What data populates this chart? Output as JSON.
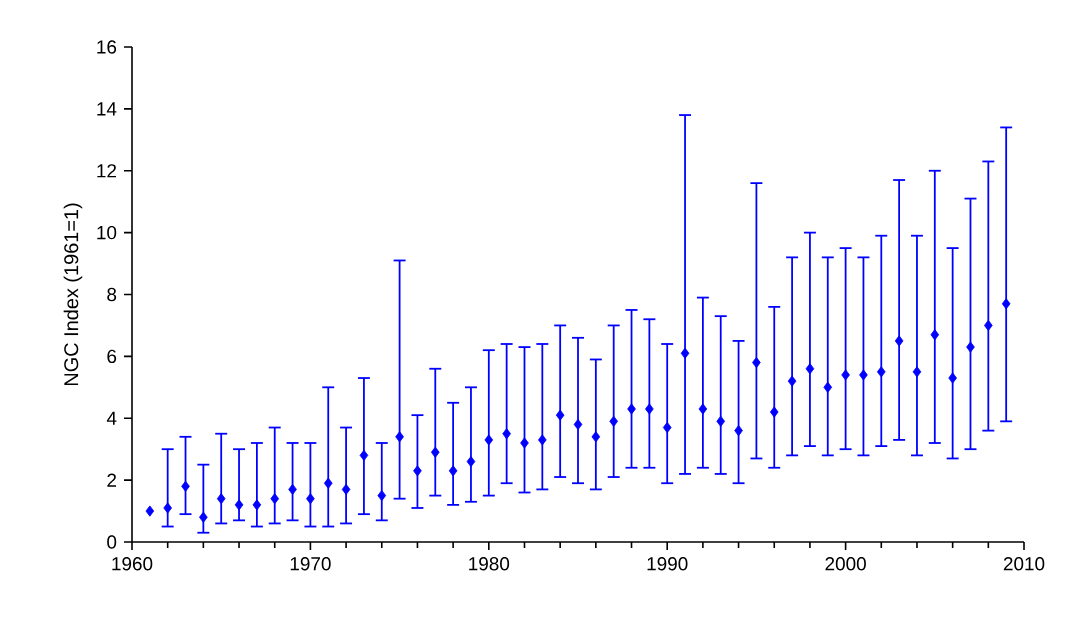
{
  "chart_data": {
    "type": "scatter",
    "ylabel": "NGC Index (1961=1)",
    "x": [
      1961,
      1962,
      1963,
      1964,
      1965,
      1966,
      1967,
      1968,
      1969,
      1970,
      1971,
      1972,
      1973,
      1974,
      1975,
      1976,
      1977,
      1978,
      1979,
      1980,
      1981,
      1982,
      1983,
      1984,
      1985,
      1986,
      1987,
      1988,
      1989,
      1990,
      1991,
      1992,
      1993,
      1994,
      1995,
      1996,
      1997,
      1998,
      1999,
      2000,
      2001,
      2002,
      2003,
      2004,
      2005,
      2006,
      2007,
      2008,
      2009
    ],
    "series": [
      {
        "color": "#0000ff",
        "values": [
          1.0,
          1.1,
          1.8,
          0.8,
          1.4,
          1.2,
          1.2,
          1.4,
          1.7,
          1.4,
          1.9,
          1.7,
          2.8,
          1.5,
          3.4,
          2.3,
          2.9,
          2.3,
          2.6,
          3.3,
          3.5,
          3.2,
          3.3,
          4.1,
          3.8,
          3.4,
          3.9,
          4.3,
          4.3,
          3.7,
          6.1,
          4.3,
          3.9,
          3.6,
          5.8,
          4.2,
          5.2,
          5.6,
          5.0,
          5.4,
          5.4,
          5.5,
          6.5,
          5.5,
          6.7,
          5.3,
          6.3,
          7.0,
          7.7
        ],
        "errors": [
          null,
          [
            0.5,
            3.0
          ],
          [
            0.9,
            3.4
          ],
          [
            0.3,
            2.5
          ],
          [
            0.6,
            3.5
          ],
          [
            0.7,
            3.0
          ],
          [
            0.5,
            3.2
          ],
          [
            0.6,
            3.7
          ],
          [
            0.7,
            3.2
          ],
          [
            0.5,
            3.2
          ],
          [
            0.5,
            5.0
          ],
          [
            0.6,
            3.7
          ],
          [
            0.9,
            5.3
          ],
          [
            0.7,
            3.2
          ],
          [
            1.4,
            9.1
          ],
          [
            1.1,
            4.1
          ],
          [
            1.5,
            5.6
          ],
          [
            1.2,
            4.5
          ],
          [
            1.3,
            5.0
          ],
          [
            1.5,
            6.2
          ],
          [
            1.9,
            6.4
          ],
          [
            1.6,
            6.3
          ],
          [
            1.7,
            6.4
          ],
          [
            2.1,
            7.0
          ],
          [
            1.9,
            6.6
          ],
          [
            1.7,
            5.9
          ],
          [
            2.1,
            7.0
          ],
          [
            2.4,
            7.5
          ],
          [
            2.4,
            7.2
          ],
          [
            1.9,
            6.4
          ],
          [
            2.2,
            13.8
          ],
          [
            2.4,
            7.9
          ],
          [
            2.2,
            7.3
          ],
          [
            1.9,
            6.5
          ],
          [
            2.7,
            11.6
          ],
          [
            2.4,
            7.6
          ],
          [
            2.8,
            9.2
          ],
          [
            3.1,
            10.0
          ],
          [
            2.8,
            9.2
          ],
          [
            3.0,
            9.5
          ],
          [
            2.8,
            9.2
          ],
          [
            3.1,
            9.9
          ],
          [
            3.3,
            11.7
          ],
          [
            2.8,
            9.9
          ],
          [
            3.2,
            12.0
          ],
          [
            2.7,
            9.5
          ],
          [
            3.0,
            11.1
          ],
          [
            3.6,
            12.3
          ],
          [
            3.9,
            13.4
          ]
        ]
      }
    ],
    "xlim": [
      1960,
      2010
    ],
    "xticks": [
      1960,
      1970,
      1980,
      1990,
      2000,
      2010
    ],
    "ylim": [
      0,
      16
    ],
    "yticks": [
      0,
      2,
      4,
      6,
      8,
      10,
      12,
      14,
      16
    ],
    "grid": false,
    "marker": "diamond"
  }
}
